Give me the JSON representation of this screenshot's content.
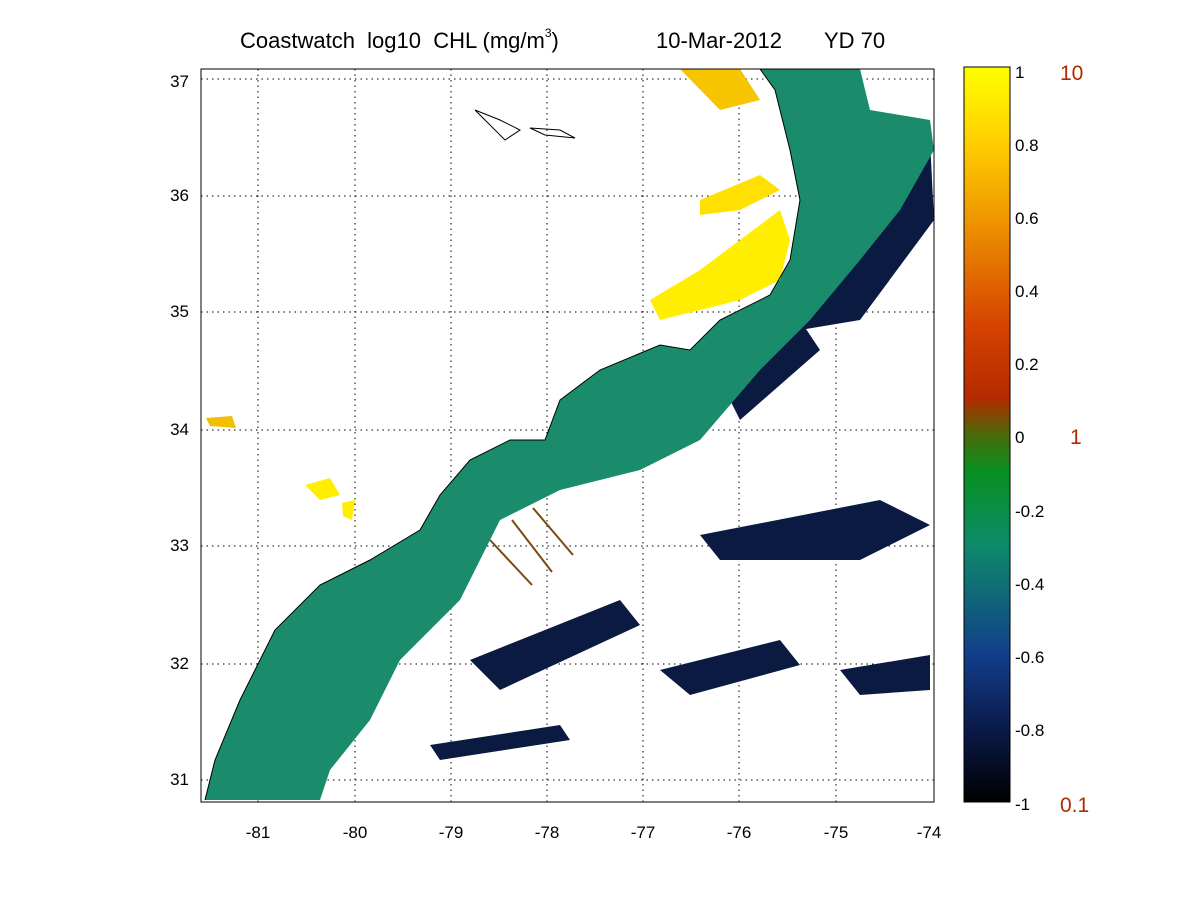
{
  "title": {
    "text": "Coastwatch  log10  CHL (mg/m",
    "sup": "3",
    "close": ")",
    "date": "10-Mar-2012",
    "yd": "YD 70"
  },
  "map": {
    "lon_range": [
      -81.6,
      -74
    ],
    "lat_range": [
      30.8,
      37.15
    ],
    "x_ticks": [
      "-81",
      "-80",
      "-79",
      "-78",
      "-77",
      "-76",
      "-75",
      "-74"
    ],
    "y_ticks": [
      "31",
      "32",
      "33",
      "34",
      "35",
      "36",
      "37"
    ],
    "grid": "dotted"
  },
  "colorbar": {
    "ticks": [
      "1",
      "0.8",
      "0.6",
      "0.4",
      "0.2",
      "0",
      "-0.2",
      "-0.4",
      "-0.6",
      "-0.8",
      "-1"
    ],
    "alt_labels": [
      "10",
      "1",
      "0.1"
    ],
    "range": [
      -1,
      1
    ],
    "colors": [
      "#000000",
      "#0a1a4a",
      "#123e8a",
      "#0e7f6a",
      "#08901f",
      "#3f6a0a",
      "#b52a00",
      "#d64400",
      "#f08a00",
      "#ffd200",
      "#ffff00"
    ]
  }
}
